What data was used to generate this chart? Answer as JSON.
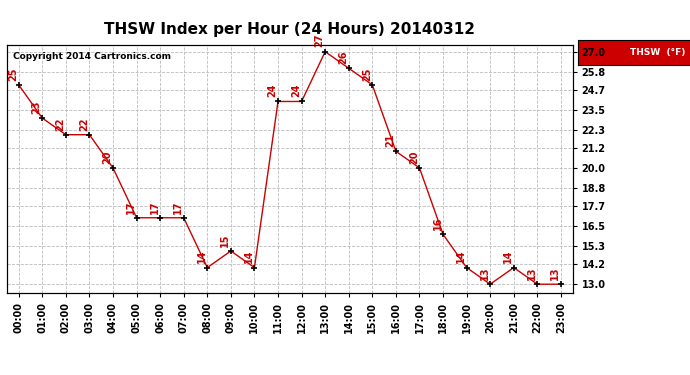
{
  "title": "THSW Index per Hour (24 Hours) 20140312",
  "copyright": "Copyright 2014 Cartronics.com",
  "legend_label": "THSW  (°F)",
  "hours": [
    0,
    1,
    2,
    3,
    4,
    5,
    6,
    7,
    8,
    9,
    10,
    11,
    12,
    13,
    14,
    15,
    16,
    17,
    18,
    19,
    20,
    21,
    22,
    23
  ],
  "values": [
    25,
    23,
    22,
    22,
    20,
    17,
    17,
    17,
    14,
    15,
    14,
    24,
    24,
    27,
    26,
    25,
    21,
    20,
    16,
    14,
    13,
    14,
    13,
    13
  ],
  "x_labels": [
    "00:00",
    "01:00",
    "02:00",
    "03:00",
    "04:00",
    "05:00",
    "06:00",
    "07:00",
    "08:00",
    "09:00",
    "10:00",
    "11:00",
    "12:00",
    "13:00",
    "14:00",
    "15:00",
    "16:00",
    "17:00",
    "18:00",
    "19:00",
    "20:00",
    "21:00",
    "22:00",
    "23:00"
  ],
  "y_ticks": [
    13.0,
    14.2,
    15.3,
    16.5,
    17.7,
    18.8,
    20.0,
    21.2,
    22.3,
    23.5,
    24.7,
    25.8,
    27.0
  ],
  "ylim": [
    12.5,
    27.4
  ],
  "line_color": "#cc0000",
  "marker_color": "#000000",
  "label_color": "#cc0000",
  "grid_color": "#bbbbbb",
  "bg_color": "#ffffff",
  "legend_bg": "#cc0000",
  "legend_text_color": "#ffffff",
  "title_fontsize": 11,
  "label_fontsize": 7,
  "tick_fontsize": 7,
  "copyright_fontsize": 6.5
}
